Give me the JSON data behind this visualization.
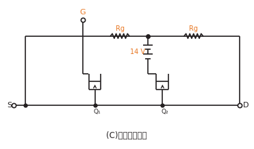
{
  "title": "(C)使用其他电源",
  "label_G": "G",
  "label_S": "S",
  "label_D": "D",
  "label_Rg": "Rg",
  "label_Q1": "Q₁",
  "label_Q2": "Q₂",
  "label_14V": "14 V",
  "color_orange": "#E87722",
  "color_black": "#231F20",
  "color_bg": "#ffffff",
  "fig_width": 3.71,
  "fig_height": 2.18,
  "dpi": 100
}
